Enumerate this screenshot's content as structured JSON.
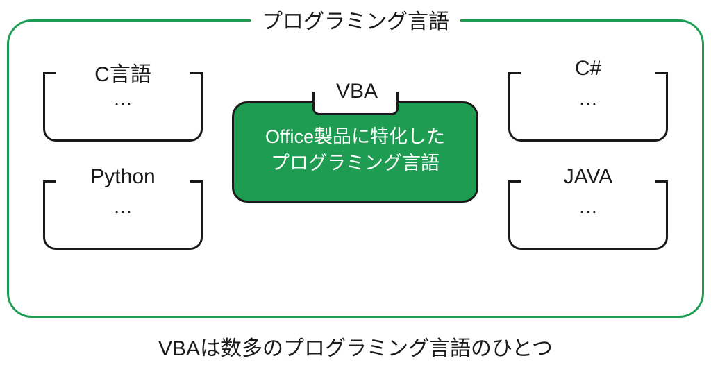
{
  "diagram": {
    "type": "infographic",
    "outer_title": "プログラミング言語",
    "outer_border_color": "#1e9c52",
    "background_color": "#ffffff",
    "languages": {
      "c": {
        "title": "C言語",
        "content": "…"
      },
      "python": {
        "title": "Python",
        "content": "…"
      },
      "csharp": {
        "title": "C#",
        "content": "…"
      },
      "java": {
        "title": "JAVA",
        "content": "…"
      }
    },
    "vba": {
      "title": "VBA",
      "description_line1": "Office製品に特化した",
      "description_line2": "プログラミング言語",
      "fill_color": "#1e9c52",
      "text_color": "#ffffff",
      "border_color": "#1a1a1a"
    },
    "box_border_color": "#1a1a1a",
    "caption": "VBAは数多のプログラミング言語のひとつ",
    "title_fontsize": 30,
    "body_fontsize": 27
  }
}
